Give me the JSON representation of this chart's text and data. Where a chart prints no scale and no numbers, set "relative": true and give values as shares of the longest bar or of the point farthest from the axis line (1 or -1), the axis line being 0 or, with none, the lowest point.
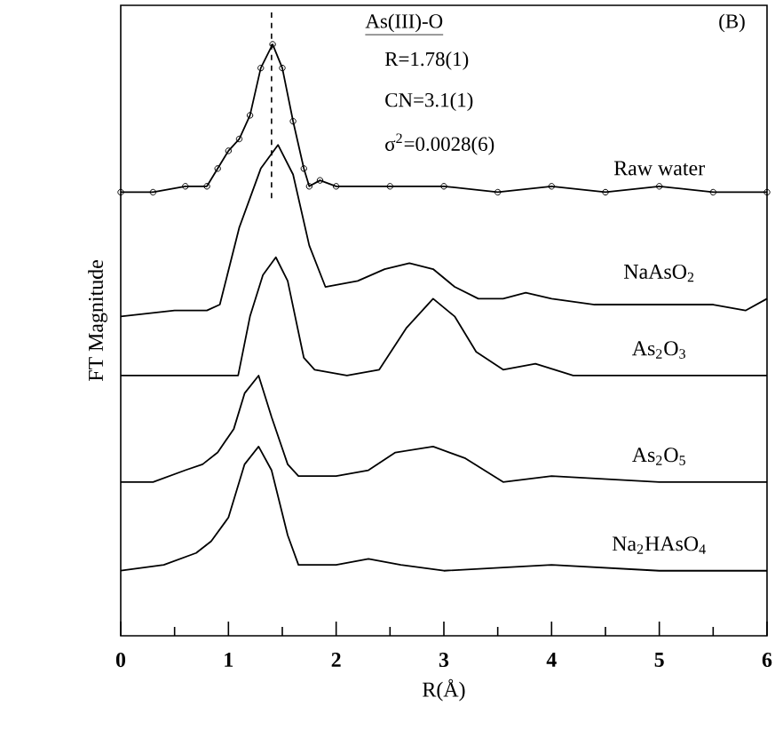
{
  "chart_data": {
    "type": "line",
    "relative": true,
    "xlabel": "R(Å)",
    "ylabel": "FT Magnitude",
    "xlim": [
      0,
      6
    ],
    "xticks": [
      0,
      1,
      2,
      3,
      4,
      5,
      6
    ],
    "grid": false,
    "line_style": "solid",
    "ref_lines": [
      {
        "axis": "x",
        "value": 1.4,
        "line_style": "dashed",
        "color": "#000000"
      }
    ],
    "annotations": [
      "(B)",
      "As(III)-O",
      "R=1.78(1)",
      "CN=3.1(1)",
      "σ$^{2}$=0.0028(6)"
    ],
    "series": [
      {
        "name": "Raw water",
        "color": "#000000",
        "marker": "circle",
        "x": [
          0,
          0.3,
          0.6,
          0.8,
          0.9,
          1.0,
          1.1,
          1.2,
          1.3,
          1.41,
          1.5,
          1.6,
          1.7,
          1.75,
          1.85,
          2.0,
          2.5,
          3.0,
          3.5,
          4.0,
          4.5,
          5.0,
          5.5,
          6.0
        ],
        "values": [
          0.75,
          0.75,
          0.76,
          0.76,
          0.79,
          0.82,
          0.84,
          0.88,
          0.96,
          1.0,
          0.96,
          0.87,
          0.79,
          0.76,
          0.77,
          0.76,
          0.76,
          0.76,
          0.75,
          0.76,
          0.75,
          0.76,
          0.75,
          0.75
        ]
      },
      {
        "name": "NaAsO$_{2}$",
        "color": "#000000",
        "x": [
          0,
          0.5,
          0.8,
          0.92,
          1.1,
          1.3,
          1.46,
          1.6,
          1.75,
          1.9,
          2.2,
          2.45,
          2.68,
          2.9,
          3.1,
          3.32,
          3.55,
          3.76,
          4.0,
          4.4,
          5.0,
          5.5,
          5.8,
          6.0
        ],
        "values": [
          0.54,
          0.55,
          0.55,
          0.56,
          0.69,
          0.79,
          0.83,
          0.78,
          0.66,
          0.59,
          0.6,
          0.62,
          0.63,
          0.62,
          0.59,
          0.57,
          0.57,
          0.58,
          0.57,
          0.56,
          0.56,
          0.56,
          0.55,
          0.57
        ]
      },
      {
        "name": "As$_{2}$O$_{3}$",
        "color": "#000000",
        "x": [
          0,
          0.5,
          1.0,
          1.09,
          1.2,
          1.32,
          1.44,
          1.55,
          1.7,
          1.8,
          2.1,
          2.4,
          2.65,
          2.9,
          3.1,
          3.3,
          3.55,
          3.85,
          4.2,
          5.0,
          6.0
        ],
        "values": [
          0.44,
          0.44,
          0.44,
          0.44,
          0.54,
          0.61,
          0.64,
          0.6,
          0.47,
          0.45,
          0.44,
          0.45,
          0.52,
          0.57,
          0.54,
          0.48,
          0.45,
          0.46,
          0.44,
          0.44,
          0.44
        ]
      },
      {
        "name": "As$_{2}$O$_{5}$",
        "color": "#000000",
        "x": [
          0,
          0.3,
          0.6,
          0.76,
          0.9,
          1.05,
          1.15,
          1.28,
          1.4,
          1.55,
          1.65,
          2.0,
          2.3,
          2.55,
          2.9,
          3.2,
          3.55,
          4.0,
          5.0,
          6.0
        ],
        "values": [
          0.26,
          0.26,
          0.28,
          0.29,
          0.31,
          0.35,
          0.41,
          0.44,
          0.37,
          0.29,
          0.27,
          0.27,
          0.28,
          0.31,
          0.32,
          0.3,
          0.26,
          0.27,
          0.26,
          0.26
        ]
      },
      {
        "name": "Na$_{2}$HAsO$_{4}$",
        "color": "#000000",
        "x": [
          0,
          0.4,
          0.7,
          0.84,
          1.0,
          1.15,
          1.28,
          1.4,
          1.55,
          1.65,
          2.0,
          2.3,
          2.6,
          3.0,
          4.0,
          5.0,
          6.0
        ],
        "values": [
          0.11,
          0.12,
          0.14,
          0.16,
          0.2,
          0.29,
          0.32,
          0.28,
          0.17,
          0.12,
          0.12,
          0.13,
          0.12,
          0.11,
          0.12,
          0.11,
          0.11
        ]
      }
    ]
  }
}
